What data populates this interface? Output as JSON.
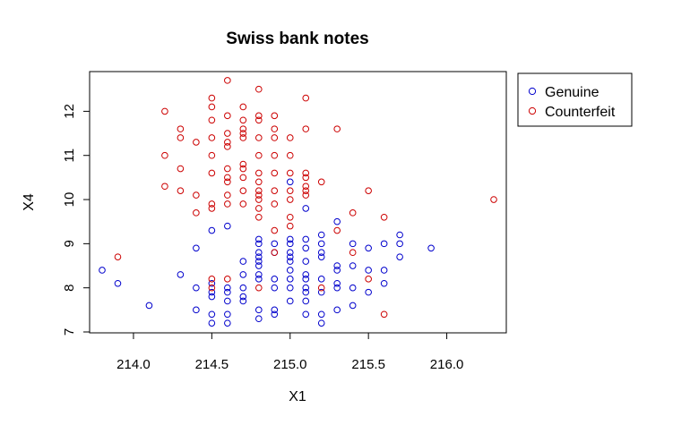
{
  "chart_data": {
    "type": "scatter",
    "title": "Swiss bank notes",
    "xlabel": "X1",
    "ylabel": "X4",
    "xlim": [
      213.72,
      216.38
    ],
    "ylim": [
      6.98,
      12.9
    ],
    "x_ticks": [
      214.0,
      214.5,
      215.0,
      215.5,
      216.0
    ],
    "x_tick_labels": [
      "214.0",
      "214.5",
      "215.0",
      "215.5",
      "216.0"
    ],
    "y_ticks": [
      7,
      8,
      9,
      10,
      11,
      12
    ],
    "y_tick_labels": [
      "7",
      "8",
      "9",
      "10",
      "11",
      "12"
    ],
    "grid": false,
    "legend": {
      "position": "top-right-outside"
    },
    "series": [
      {
        "name": "Genuine",
        "color": "#0000cc",
        "marker": "open-circle",
        "points": [
          [
            213.8,
            8.4
          ],
          [
            213.9,
            8.1
          ],
          [
            214.1,
            7.6
          ],
          [
            214.3,
            8.3
          ],
          [
            214.4,
            8.9
          ],
          [
            214.4,
            8.0
          ],
          [
            214.4,
            7.5
          ],
          [
            214.5,
            9.3
          ],
          [
            214.5,
            8.1
          ],
          [
            214.5,
            7.9
          ],
          [
            214.5,
            7.8
          ],
          [
            214.5,
            7.4
          ],
          [
            214.5,
            7.2
          ],
          [
            214.6,
            9.4
          ],
          [
            214.6,
            8.0
          ],
          [
            214.6,
            7.9
          ],
          [
            214.6,
            7.7
          ],
          [
            214.6,
            7.4
          ],
          [
            214.6,
            7.2
          ],
          [
            214.7,
            8.6
          ],
          [
            214.7,
            8.3
          ],
          [
            214.7,
            8.0
          ],
          [
            214.7,
            7.8
          ],
          [
            214.7,
            7.7
          ],
          [
            214.8,
            9.1
          ],
          [
            214.8,
            9.0
          ],
          [
            214.8,
            8.8
          ],
          [
            214.8,
            8.7
          ],
          [
            214.8,
            8.6
          ],
          [
            214.8,
            8.5
          ],
          [
            214.8,
            8.3
          ],
          [
            214.8,
            8.2
          ],
          [
            214.8,
            7.5
          ],
          [
            214.8,
            7.3
          ],
          [
            214.9,
            9.0
          ],
          [
            214.9,
            8.8
          ],
          [
            214.9,
            8.2
          ],
          [
            214.9,
            8.0
          ],
          [
            214.9,
            7.5
          ],
          [
            214.9,
            7.4
          ],
          [
            215.0,
            10.4
          ],
          [
            215.0,
            9.1
          ],
          [
            215.0,
            9.0
          ],
          [
            215.0,
            8.8
          ],
          [
            215.0,
            8.7
          ],
          [
            215.0,
            8.6
          ],
          [
            215.0,
            8.4
          ],
          [
            215.0,
            8.2
          ],
          [
            215.0,
            8.0
          ],
          [
            215.0,
            7.7
          ],
          [
            215.1,
            9.8
          ],
          [
            215.1,
            9.1
          ],
          [
            215.1,
            8.9
          ],
          [
            215.1,
            8.6
          ],
          [
            215.1,
            8.3
          ],
          [
            215.1,
            8.2
          ],
          [
            215.1,
            8.0
          ],
          [
            215.1,
            7.9
          ],
          [
            215.1,
            7.7
          ],
          [
            215.1,
            7.4
          ],
          [
            215.2,
            9.2
          ],
          [
            215.2,
            9.0
          ],
          [
            215.2,
            8.8
          ],
          [
            215.2,
            8.7
          ],
          [
            215.2,
            8.2
          ],
          [
            215.2,
            7.9
          ],
          [
            215.2,
            7.4
          ],
          [
            215.2,
            7.2
          ],
          [
            215.3,
            9.5
          ],
          [
            215.3,
            8.5
          ],
          [
            215.3,
            8.4
          ],
          [
            215.3,
            8.1
          ],
          [
            215.3,
            8.0
          ],
          [
            215.3,
            7.5
          ],
          [
            215.4,
            9.0
          ],
          [
            215.4,
            8.5
          ],
          [
            215.4,
            8.0
          ],
          [
            215.4,
            7.6
          ],
          [
            215.5,
            8.9
          ],
          [
            215.5,
            8.4
          ],
          [
            215.5,
            7.9
          ],
          [
            215.6,
            9.0
          ],
          [
            215.6,
            8.4
          ],
          [
            215.6,
            8.1
          ],
          [
            215.7,
            9.2
          ],
          [
            215.7,
            9.0
          ],
          [
            215.7,
            8.7
          ],
          [
            215.9,
            8.9
          ]
        ]
      },
      {
        "name": "Counterfeit",
        "color": "#cc0000",
        "marker": "open-circle",
        "points": [
          [
            213.9,
            8.7
          ],
          [
            214.2,
            12.0
          ],
          [
            214.2,
            11.0
          ],
          [
            214.2,
            10.3
          ],
          [
            214.3,
            11.6
          ],
          [
            214.3,
            11.4
          ],
          [
            214.3,
            10.7
          ],
          [
            214.3,
            10.2
          ],
          [
            214.4,
            11.3
          ],
          [
            214.4,
            10.1
          ],
          [
            214.4,
            9.7
          ],
          [
            214.5,
            12.3
          ],
          [
            214.5,
            12.1
          ],
          [
            214.5,
            11.8
          ],
          [
            214.5,
            11.4
          ],
          [
            214.5,
            11.0
          ],
          [
            214.5,
            10.6
          ],
          [
            214.5,
            9.9
          ],
          [
            214.5,
            9.8
          ],
          [
            214.5,
            8.2
          ],
          [
            214.5,
            8.0
          ],
          [
            214.6,
            12.7
          ],
          [
            214.6,
            11.9
          ],
          [
            214.6,
            11.5
          ],
          [
            214.6,
            11.3
          ],
          [
            214.6,
            11.2
          ],
          [
            214.6,
            10.7
          ],
          [
            214.6,
            10.5
          ],
          [
            214.6,
            10.4
          ],
          [
            214.6,
            10.1
          ],
          [
            214.6,
            9.9
          ],
          [
            214.6,
            8.2
          ],
          [
            214.7,
            12.1
          ],
          [
            214.7,
            11.8
          ],
          [
            214.7,
            11.6
          ],
          [
            214.7,
            11.5
          ],
          [
            214.7,
            11.4
          ],
          [
            214.7,
            10.8
          ],
          [
            214.7,
            10.7
          ],
          [
            214.7,
            10.5
          ],
          [
            214.7,
            10.2
          ],
          [
            214.7,
            9.9
          ],
          [
            214.8,
            12.5
          ],
          [
            214.8,
            11.9
          ],
          [
            214.8,
            11.8
          ],
          [
            214.8,
            11.4
          ],
          [
            214.8,
            11.0
          ],
          [
            214.8,
            10.6
          ],
          [
            214.8,
            10.4
          ],
          [
            214.8,
            10.2
          ],
          [
            214.8,
            10.1
          ],
          [
            214.8,
            10.0
          ],
          [
            214.8,
            9.8
          ],
          [
            214.8,
            9.6
          ],
          [
            214.8,
            8.0
          ],
          [
            214.9,
            11.9
          ],
          [
            214.9,
            11.6
          ],
          [
            214.9,
            11.4
          ],
          [
            214.9,
            11.0
          ],
          [
            214.9,
            10.6
          ],
          [
            214.9,
            10.2
          ],
          [
            214.9,
            9.9
          ],
          [
            214.9,
            9.3
          ],
          [
            214.9,
            8.8
          ],
          [
            215.0,
            11.4
          ],
          [
            215.0,
            11.0
          ],
          [
            215.0,
            10.6
          ],
          [
            215.0,
            10.2
          ],
          [
            215.0,
            10.0
          ],
          [
            215.0,
            9.6
          ],
          [
            215.0,
            9.4
          ],
          [
            215.1,
            12.3
          ],
          [
            215.1,
            11.6
          ],
          [
            215.1,
            10.6
          ],
          [
            215.1,
            10.5
          ],
          [
            215.1,
            10.3
          ],
          [
            215.1,
            10.2
          ],
          [
            215.1,
            10.1
          ],
          [
            215.2,
            10.4
          ],
          [
            215.2,
            8.0
          ],
          [
            215.3,
            11.6
          ],
          [
            215.3,
            9.3
          ],
          [
            215.4,
            9.7
          ],
          [
            215.4,
            8.8
          ],
          [
            215.5,
            10.2
          ],
          [
            215.5,
            8.2
          ],
          [
            215.6,
            9.6
          ],
          [
            215.6,
            7.4
          ],
          [
            216.3,
            10.0
          ]
        ]
      }
    ]
  }
}
